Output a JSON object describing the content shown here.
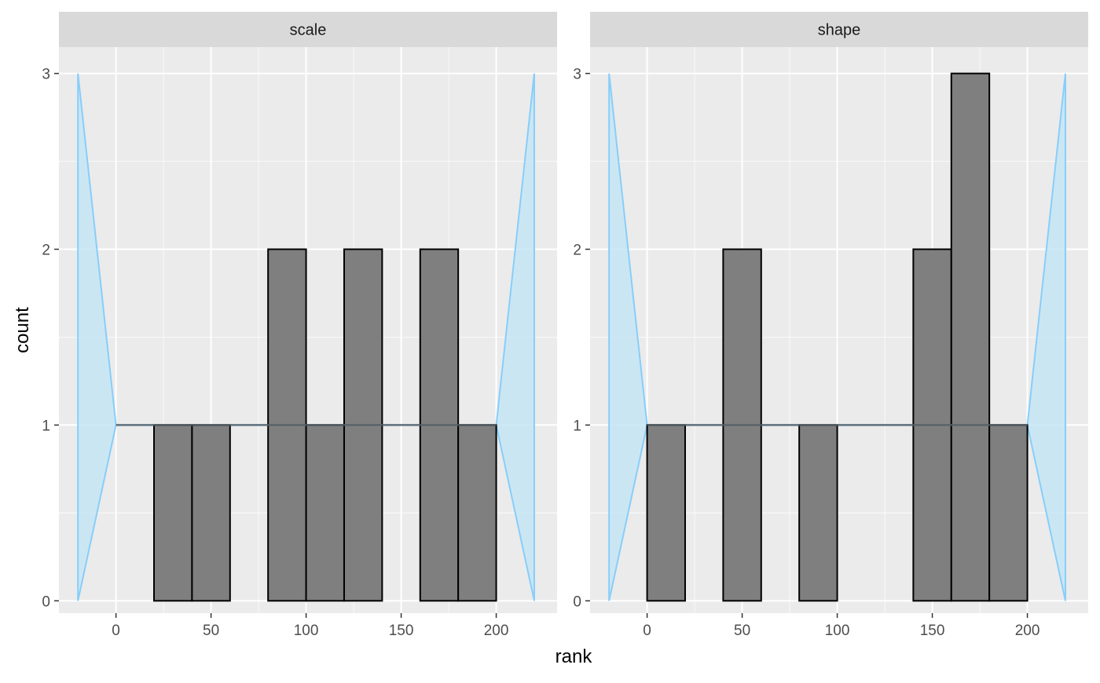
{
  "chart_data": {
    "type": "bar",
    "xlabel": "rank",
    "ylabel": "count",
    "xlim": [
      -30,
      232
    ],
    "ylim": [
      -0.07,
      3.15
    ],
    "x_ticks": [
      0,
      50,
      100,
      150,
      200
    ],
    "y_ticks": [
      0,
      1,
      2,
      3
    ],
    "bin_width": 20,
    "grid": true,
    "colors": {
      "panel_background": "#ebebeb",
      "strip_background": "#d9d9d9",
      "grid_major": "#ffffff",
      "band_fill": "#c6e5f5",
      "band_stroke": "#87cefa",
      "bar_fill": "#7f7f7f",
      "bar_stroke": "#000000",
      "expected_line": "#555f66"
    },
    "expected_band": {
      "expected": 1,
      "points": [
        [
          -20,
          0
        ],
        [
          0,
          1
        ],
        [
          200,
          1
        ],
        [
          220,
          0
        ],
        [
          220,
          3
        ],
        [
          200,
          1
        ],
        [
          0,
          1
        ],
        [
          -20,
          3
        ]
      ]
    },
    "panels": [
      {
        "strip": "scale",
        "bins": [
          {
            "x0": 0,
            "x1": 20,
            "count": 0
          },
          {
            "x0": 20,
            "x1": 40,
            "count": 1
          },
          {
            "x0": 40,
            "x1": 60,
            "count": 1
          },
          {
            "x0": 60,
            "x1": 80,
            "count": 0
          },
          {
            "x0": 80,
            "x1": 100,
            "count": 2
          },
          {
            "x0": 100,
            "x1": 120,
            "count": 1
          },
          {
            "x0": 120,
            "x1": 140,
            "count": 2
          },
          {
            "x0": 140,
            "x1": 160,
            "count": 0
          },
          {
            "x0": 160,
            "x1": 180,
            "count": 2
          },
          {
            "x0": 180,
            "x1": 200,
            "count": 1
          }
        ]
      },
      {
        "strip": "shape",
        "bins": [
          {
            "x0": 0,
            "x1": 20,
            "count": 1
          },
          {
            "x0": 20,
            "x1": 40,
            "count": 0
          },
          {
            "x0": 40,
            "x1": 60,
            "count": 2
          },
          {
            "x0": 60,
            "x1": 80,
            "count": 0
          },
          {
            "x0": 80,
            "x1": 100,
            "count": 1
          },
          {
            "x0": 100,
            "x1": 120,
            "count": 0
          },
          {
            "x0": 120,
            "x1": 140,
            "count": 0
          },
          {
            "x0": 140,
            "x1": 160,
            "count": 2
          },
          {
            "x0": 160,
            "x1": 180,
            "count": 3
          },
          {
            "x0": 180,
            "x1": 200,
            "count": 1
          }
        ]
      }
    ]
  }
}
